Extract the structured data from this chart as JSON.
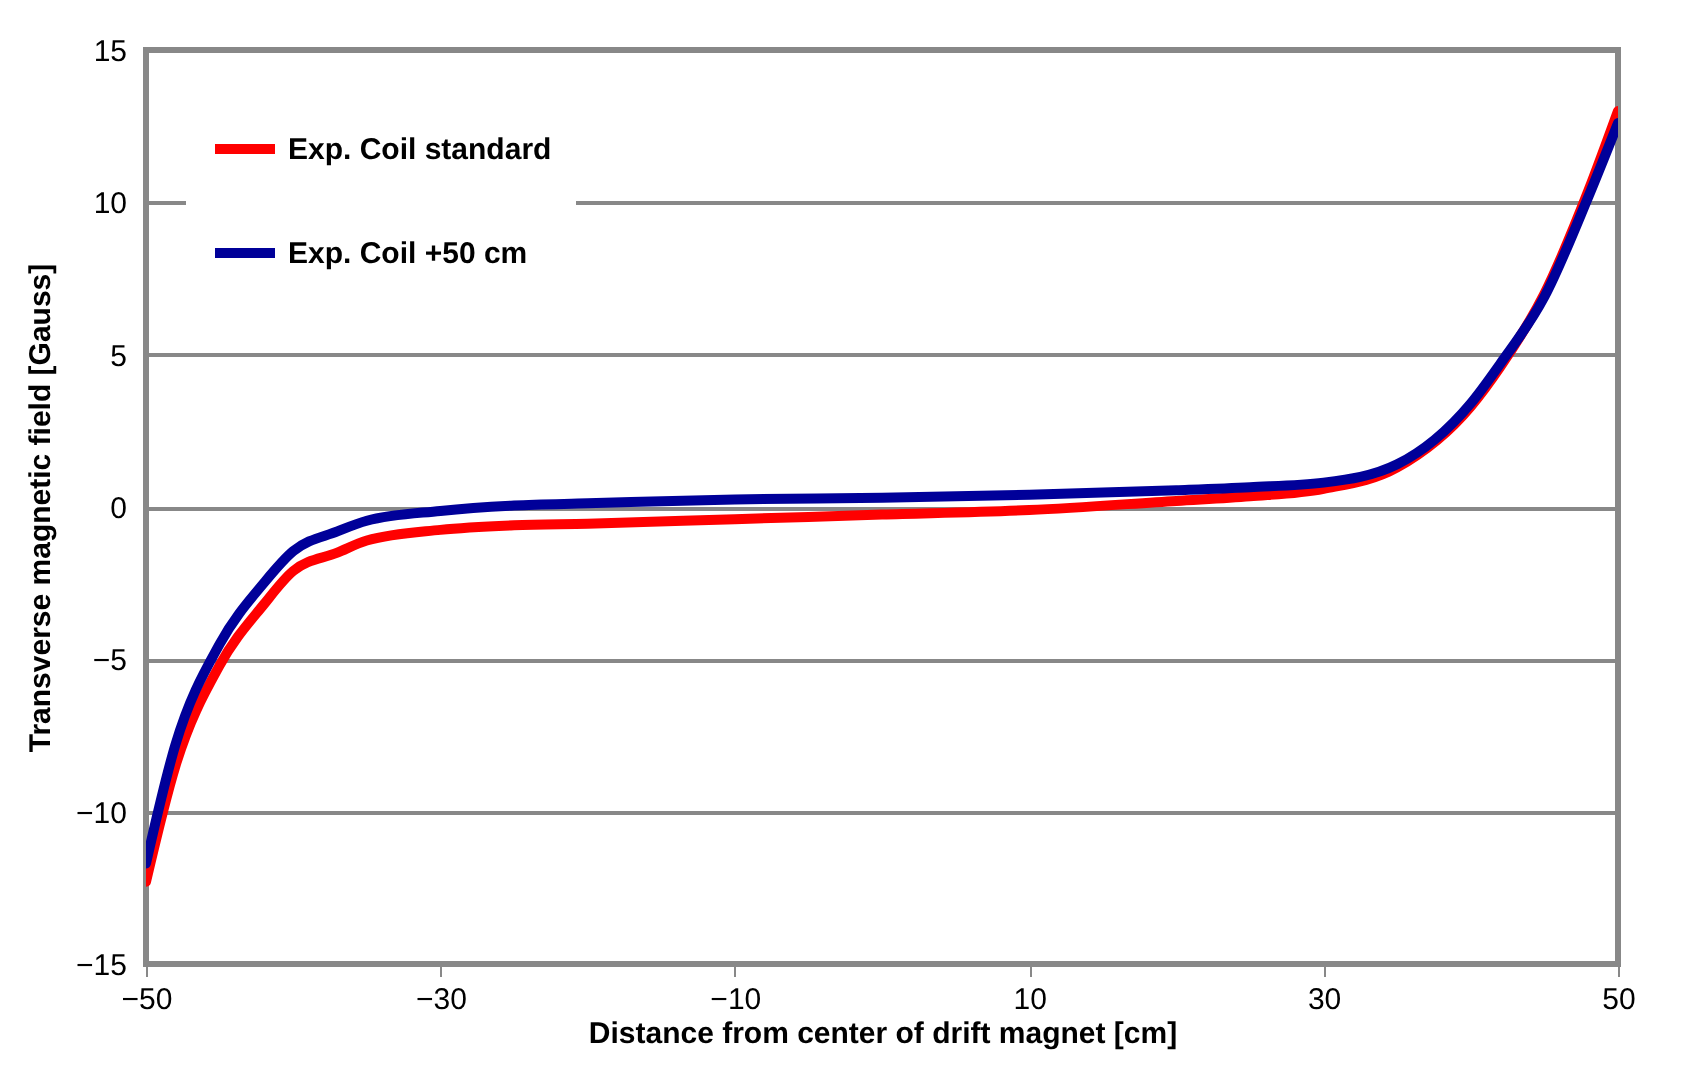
{
  "chart_data": {
    "type": "line",
    "xlabel": "Distance from center of drift magnet [cm]",
    "ylabel": "Transverse magnetic field [Gauss]",
    "xlim": [
      -50,
      50
    ],
    "xticks": [
      -50,
      -30,
      -10,
      10,
      30,
      50
    ],
    "ylim": [
      -15,
      15
    ],
    "yticks": [
      -15,
      -10,
      -5,
      0,
      5,
      10,
      15
    ],
    "grid": "y",
    "legend": "top left",
    "marker": "none",
    "line_style": "solid",
    "series": [
      {
        "name": "Exp. Coil standard",
        "color": "#ff0000",
        "x": [
          -50,
          -48,
          -45,
          -42,
          -40,
          -37,
          -35,
          -30,
          -25,
          -20,
          -10,
          0,
          10,
          20,
          25,
          30,
          35,
          40,
          42,
          45,
          48,
          50
        ],
        "values": [
          -12.3,
          -8.5,
          -5.2,
          -3.2,
          -2.1,
          -1.5,
          -1.1,
          -0.75,
          -0.6,
          -0.55,
          -0.4,
          -0.25,
          -0.1,
          0.2,
          0.35,
          0.6,
          1.3,
          3.3,
          4.6,
          7.0,
          10.4,
          13.0
        ]
      },
      {
        "name": "Exp. Coil +50 cm",
        "color": "#000099",
        "x": [
          -50,
          -48,
          -45,
          -42,
          -40,
          -37,
          -35,
          -30,
          -25,
          -20,
          -10,
          0,
          10,
          20,
          25,
          30,
          35,
          40,
          42,
          45,
          48,
          50
        ],
        "values": [
          -11.7,
          -7.8,
          -4.5,
          -2.5,
          -1.45,
          -0.8,
          -0.45,
          -0.13,
          0.05,
          0.12,
          0.25,
          0.3,
          0.4,
          0.55,
          0.65,
          0.8,
          1.4,
          3.4,
          4.7,
          6.9,
          10.2,
          12.6
        ]
      }
    ]
  }
}
